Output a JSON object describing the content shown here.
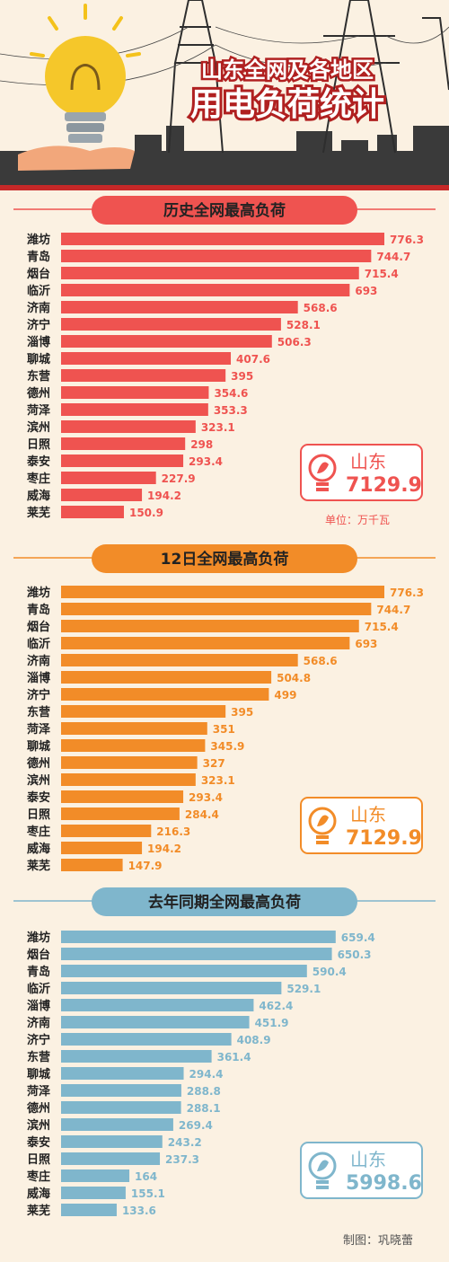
{
  "header": {
    "title_line1": "山东全网及各地区",
    "title_line2": "用电负荷统计"
  },
  "colors": {
    "red": "#ef5350",
    "orange": "#f28c28",
    "blue": "#7fb6cc",
    "cream": "#fbf1e2"
  },
  "icons": {
    "bulb": "lightbulb-leaf-icon"
  },
  "chart_data": [
    {
      "type": "bar",
      "orientation": "horizontal",
      "title": "历史全网最高负荷",
      "categories": [
        "潍坊",
        "青岛",
        "烟台",
        "临沂",
        "济南",
        "济宁",
        "淄博",
        "聊城",
        "东营",
        "德州",
        "菏泽",
        "滨州",
        "日照",
        "泰安",
        "枣庄",
        "威海",
        "莱芜"
      ],
      "values": [
        776.3,
        744.7,
        715.4,
        693,
        568.6,
        528.1,
        506.3,
        407.6,
        395,
        354.6,
        353.3,
        323.1,
        298,
        293.4,
        227.9,
        194.2,
        150.9
      ],
      "total_label": "山东",
      "total_value": "7129.9",
      "unit_note": "单位：万千瓦"
    },
    {
      "type": "bar",
      "orientation": "horizontal",
      "title": "12日全网最高负荷",
      "categories": [
        "潍坊",
        "青岛",
        "烟台",
        "临沂",
        "济南",
        "淄博",
        "济宁",
        "东营",
        "菏泽",
        "聊城",
        "德州",
        "滨州",
        "泰安",
        "日照",
        "枣庄",
        "威海",
        "莱芜"
      ],
      "values": [
        776.3,
        744.7,
        715.4,
        693,
        568.6,
        504.8,
        499,
        395,
        351,
        345.9,
        327,
        323.1,
        293.4,
        284.4,
        216.3,
        194.2,
        147.9
      ],
      "total_label": "山东",
      "total_value": "7129.9"
    },
    {
      "type": "bar",
      "orientation": "horizontal",
      "title": "去年同期全网最高负荷",
      "categories": [
        "潍坊",
        "烟台",
        "青岛",
        "临沂",
        "淄博",
        "济南",
        "济宁",
        "东营",
        "聊城",
        "菏泽",
        "德州",
        "滨州",
        "泰安",
        "日照",
        "枣庄",
        "威海",
        "莱芜"
      ],
      "values": [
        659.4,
        650.3,
        590.4,
        529.1,
        462.4,
        451.9,
        408.9,
        361.4,
        294.4,
        288.8,
        288.1,
        269.4,
        243.2,
        237.3,
        164,
        155.1,
        133.6
      ],
      "total_label": "山东",
      "total_value": "5998.6"
    }
  ],
  "footer": "制图：巩晓蕾"
}
